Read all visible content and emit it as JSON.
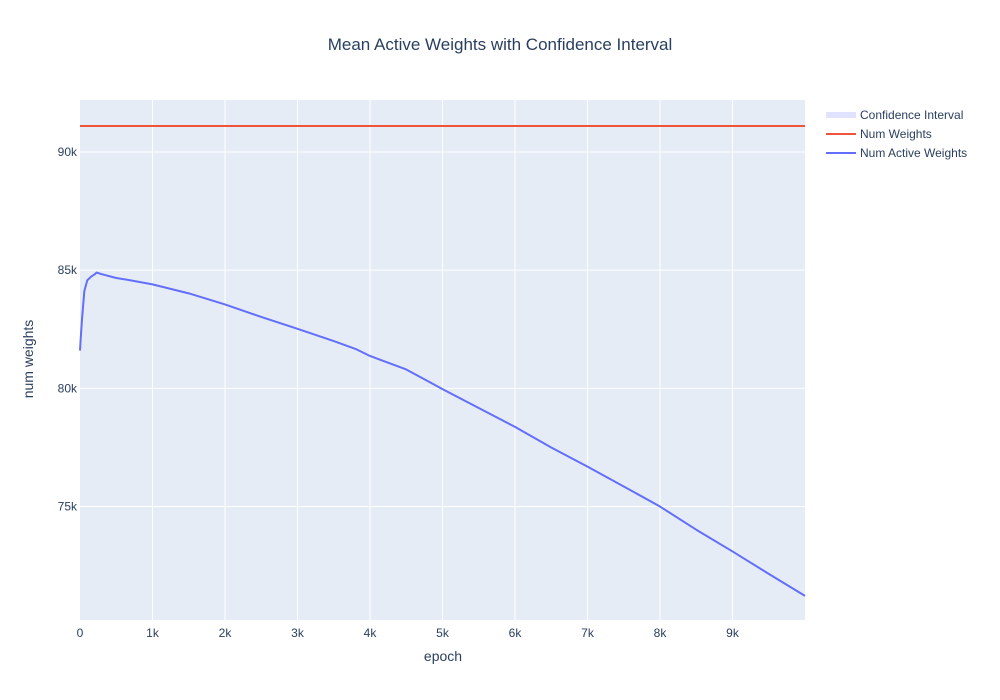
{
  "chart_data": {
    "type": "line",
    "title": "Mean Active Weights with Confidence Interval",
    "xlabel": "epoch",
    "ylabel": "num weights",
    "xlim": [
      0,
      10000
    ],
    "ylim": [
      70200,
      92200
    ],
    "x_ticks": [
      {
        "value": 0,
        "label": "0"
      },
      {
        "value": 1000,
        "label": "1k"
      },
      {
        "value": 2000,
        "label": "2k"
      },
      {
        "value": 3000,
        "label": "3k"
      },
      {
        "value": 4000,
        "label": "4k"
      },
      {
        "value": 5000,
        "label": "5k"
      },
      {
        "value": 6000,
        "label": "6k"
      },
      {
        "value": 7000,
        "label": "7k"
      },
      {
        "value": 8000,
        "label": "8k"
      },
      {
        "value": 9000,
        "label": "9k"
      }
    ],
    "y_ticks": [
      {
        "value": 75000,
        "label": "75k"
      },
      {
        "value": 80000,
        "label": "80k"
      },
      {
        "value": 85000,
        "label": "85k"
      },
      {
        "value": 90000,
        "label": "90k"
      }
    ],
    "grid": true,
    "legend_position": "top-right",
    "series": [
      {
        "name": "Confidence Interval",
        "kind": "band",
        "color": "#636efa",
        "opacity": 0.2,
        "x": [
          0,
          10,
          30,
          60,
          100,
          150,
          200,
          230,
          300,
          500,
          700,
          1000,
          1500,
          2000,
          2500,
          3000,
          3500,
          3800,
          4000,
          4500,
          5000,
          5500,
          6000,
          6500,
          7000,
          7500,
          8000,
          8500,
          9000,
          9500,
          10000
        ],
        "lower": [
          81580,
          82100,
          83000,
          84100,
          84550,
          84700,
          84800,
          84880,
          84810,
          84650,
          84550,
          84380,
          84000,
          83530,
          83000,
          82500,
          81980,
          81650,
          81350,
          80780,
          79950,
          79150,
          78350,
          77480,
          76670,
          75830,
          74980,
          74000,
          73080,
          72130,
          71200
        ],
        "upper": [
          81620,
          82140,
          83040,
          84140,
          84590,
          84740,
          84840,
          84920,
          84850,
          84690,
          84590,
          84420,
          84040,
          83570,
          83040,
          82540,
          82020,
          81690,
          81390,
          80820,
          79990,
          79190,
          78390,
          77520,
          76710,
          75870,
          75020,
          74040,
          73120,
          72170,
          71240
        ]
      },
      {
        "name": "Num Weights",
        "kind": "line",
        "color": "#ef553b",
        "x": [
          0,
          10000
        ],
        "y": [
          91100,
          91100
        ]
      },
      {
        "name": "Num Active Weights",
        "kind": "line",
        "color": "#636efa",
        "x": [
          0,
          10,
          30,
          60,
          100,
          150,
          200,
          230,
          300,
          500,
          700,
          1000,
          1500,
          2000,
          2500,
          3000,
          3500,
          3800,
          4000,
          4500,
          5000,
          5500,
          6000,
          6500,
          7000,
          7500,
          8000,
          8500,
          9000,
          9500,
          10000
        ],
        "y": [
          81600,
          82120,
          83020,
          84120,
          84570,
          84720,
          84820,
          84900,
          84830,
          84670,
          84570,
          84400,
          84020,
          83550,
          83020,
          82520,
          82000,
          81670,
          81370,
          80800,
          79970,
          79170,
          78370,
          77500,
          76690,
          75850,
          75000,
          74020,
          73100,
          72150,
          71220
        ]
      }
    ]
  }
}
